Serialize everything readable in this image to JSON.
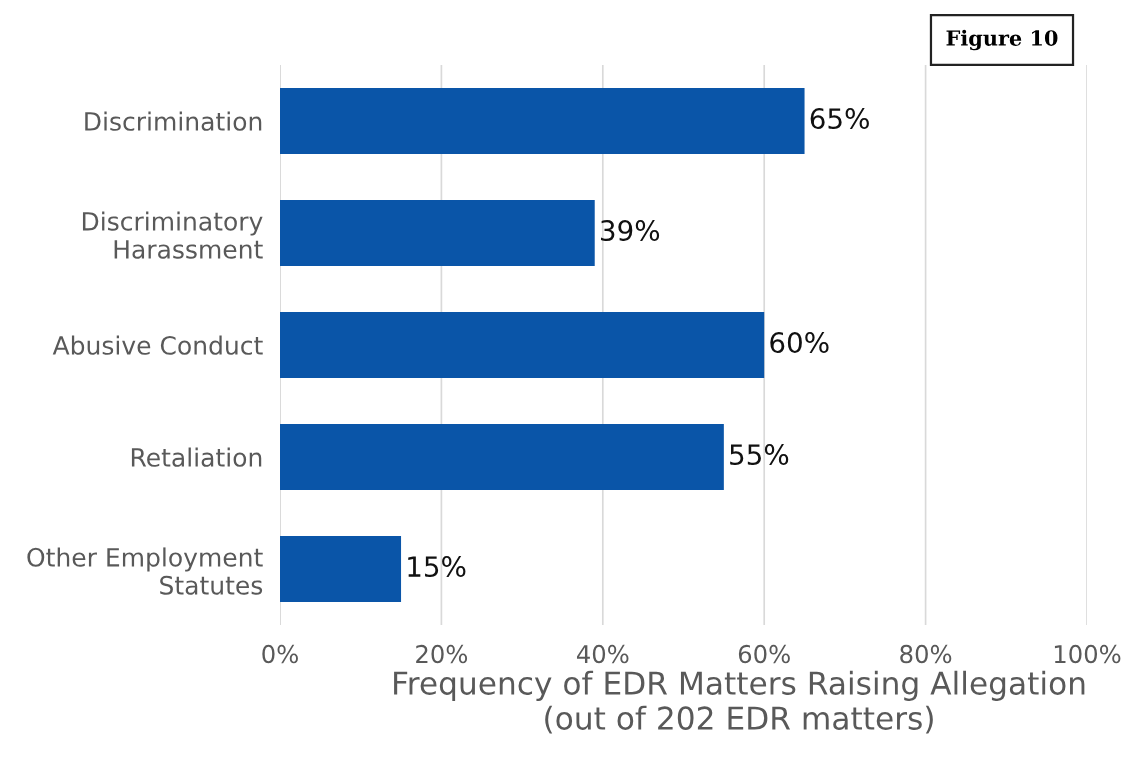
{
  "chart_data": {
    "type": "bar",
    "orientation": "horizontal",
    "title": "Figure 10",
    "xlabel": "Frequency of EDR Matters Raising Allegation\n(out of 202 EDR matters)",
    "categories": [
      "Discrimination",
      "Discriminatory\nHarassment",
      "Abusive Conduct",
      "Retaliation",
      "Other Employment\nStatutes"
    ],
    "values": [
      65,
      39,
      60,
      55,
      15
    ],
    "value_labels": [
      "65%",
      "39%",
      "60%",
      "55%",
      "15%"
    ],
    "color": "#0a55a8",
    "xlim": [
      0,
      100
    ],
    "xticks": [
      {
        "value": 0,
        "label": "0%"
      },
      {
        "value": 20,
        "label": "20%"
      },
      {
        "value": 40,
        "label": "40%"
      },
      {
        "value": 60,
        "label": "60%"
      },
      {
        "value": 80,
        "label": "80%"
      },
      {
        "value": 100,
        "label": "100%"
      }
    ],
    "grid": "x"
  }
}
